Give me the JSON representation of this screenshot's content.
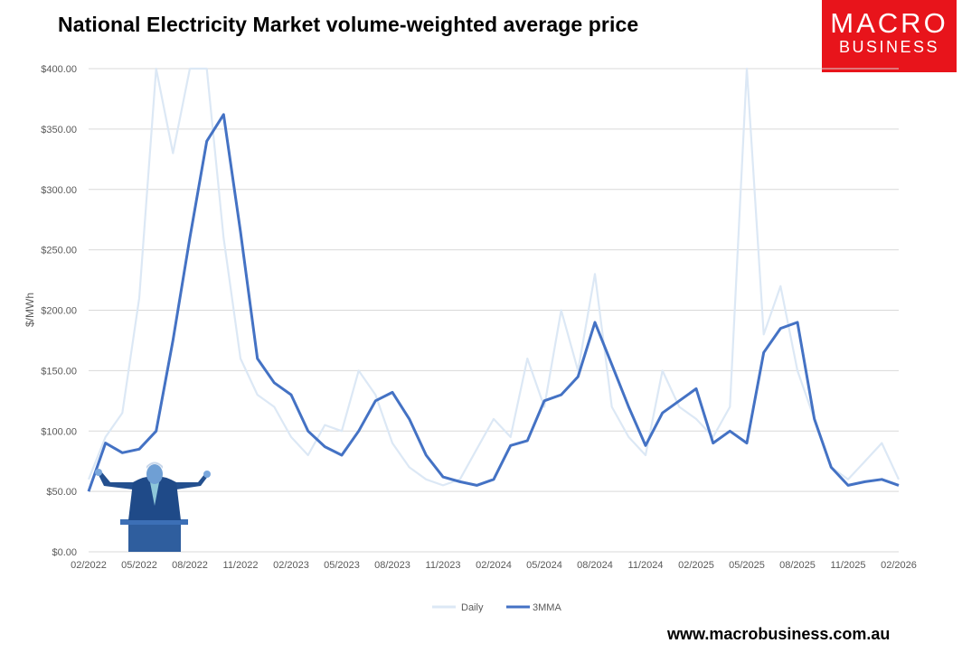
{
  "header": {
    "title": "National Electricity Market volume-weighted average price",
    "logo_line1": "MACRO",
    "logo_line2": "BUSINESS"
  },
  "footer": {
    "url": "www.macrobusiness.com.au"
  },
  "colors": {
    "daily": "#dce8f5",
    "mma": "#4472c4",
    "logo": "#e8141b",
    "grid": "#d9d9d9"
  },
  "icons": {
    "photo": "politician-at-podium-photo"
  },
  "chart_data": {
    "type": "line",
    "ylabel": "$/MWh",
    "ylim": [
      0,
      400
    ],
    "y_ticks": [
      "$0.00",
      "$50.00",
      "$100.00",
      "$150.00",
      "$200.00",
      "$250.00",
      "$300.00",
      "$350.00",
      "$400.00"
    ],
    "x_ticks": [
      "02/2022",
      "05/2022",
      "08/2022",
      "11/2022",
      "02/2023",
      "05/2023",
      "08/2023",
      "11/2023",
      "02/2024",
      "05/2024",
      "08/2024",
      "11/2024",
      "02/2025",
      "05/2025",
      "08/2025",
      "11/2025",
      "02/2026"
    ],
    "gridlines": "horizontal",
    "legend_position": "bottom",
    "series": [
      {
        "name": "Daily",
        "x": [
          "2022-02",
          "2022-03",
          "2022-04",
          "2022-05",
          "2022-06",
          "2022-07",
          "2022-08",
          "2022-09",
          "2022-10",
          "2022-11",
          "2022-12",
          "2023-01",
          "2023-02",
          "2023-03",
          "2023-04",
          "2023-05",
          "2023-06",
          "2023-07",
          "2023-08",
          "2023-09",
          "2023-10",
          "2023-11",
          "2023-12",
          "2024-01",
          "2024-02",
          "2024-03",
          "2024-04",
          "2024-05",
          "2024-06",
          "2024-07",
          "2024-08",
          "2024-09",
          "2024-10",
          "2024-11",
          "2024-12",
          "2025-01",
          "2025-02",
          "2025-03",
          "2025-04",
          "2025-05",
          "2025-06",
          "2025-07",
          "2025-08",
          "2025-09",
          "2025-10",
          "2025-11",
          "2025-12",
          "2026-01",
          "2026-02"
        ],
        "values": [
          60,
          95,
          115,
          210,
          400,
          330,
          400,
          400,
          260,
          160,
          130,
          120,
          95,
          80,
          105,
          100,
          150,
          130,
          90,
          70,
          60,
          55,
          60,
          85,
          110,
          95,
          160,
          120,
          200,
          150,
          230,
          120,
          95,
          80,
          150,
          120,
          110,
          95,
          120,
          400,
          180,
          220,
          150,
          110,
          70,
          60,
          75,
          90,
          60
        ],
        "note_values_clipped_at": 400
      },
      {
        "name": "3MMA",
        "x": [
          "2022-02",
          "2022-03",
          "2022-04",
          "2022-05",
          "2022-06",
          "2022-07",
          "2022-08",
          "2022-09",
          "2022-10",
          "2022-11",
          "2022-12",
          "2023-01",
          "2023-02",
          "2023-03",
          "2023-04",
          "2023-05",
          "2023-06",
          "2023-07",
          "2023-08",
          "2023-09",
          "2023-10",
          "2023-11",
          "2023-12",
          "2024-01",
          "2024-02",
          "2024-03",
          "2024-04",
          "2024-05",
          "2024-06",
          "2024-07",
          "2024-08",
          "2024-09",
          "2024-10",
          "2024-11",
          "2024-12",
          "2025-01",
          "2025-02",
          "2025-03",
          "2025-04",
          "2025-05",
          "2025-06",
          "2025-07",
          "2025-08",
          "2025-09",
          "2025-10",
          "2025-11",
          "2025-12",
          "2026-01",
          "2026-02"
        ],
        "values": [
          50,
          90,
          82,
          85,
          100,
          175,
          260,
          340,
          362,
          265,
          160,
          140,
          130,
          100,
          87,
          80,
          100,
          125,
          132,
          110,
          80,
          62,
          58,
          55,
          60,
          88,
          92,
          125,
          130,
          145,
          190,
          155,
          120,
          88,
          115,
          125,
          135,
          90,
          100,
          90,
          165,
          185,
          190,
          110,
          70,
          55,
          58,
          60,
          55
        ]
      }
    ]
  }
}
